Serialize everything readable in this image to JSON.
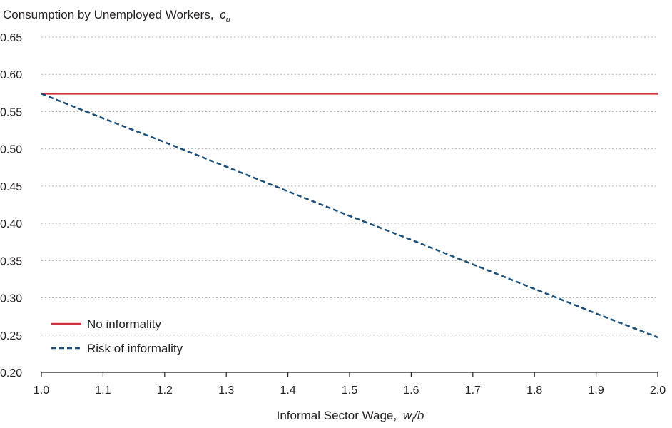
{
  "chart_data": {
    "type": "line",
    "ylabel": "Consumption by Unemployed Workers,",
    "ylabel_symbol": "c",
    "ylabel_symbol_sub": "u",
    "xlabel": "Informal Sector Wage,",
    "xlabel_symbol": "w",
    "xlabel_symbol_sub": "I",
    "xlabel_symbol_suffix": "/b",
    "xlim": [
      1.0,
      2.0
    ],
    "ylim": [
      0.2,
      0.65
    ],
    "x_ticks": [
      "1.0",
      "1.1",
      "1.2",
      "1.3",
      "1.4",
      "1.5",
      "1.6",
      "1.7",
      "1.8",
      "1.9",
      "2.0"
    ],
    "y_ticks": [
      "0.20",
      "0.25",
      "0.30",
      "0.35",
      "0.40",
      "0.45",
      "0.50",
      "0.55",
      "0.60",
      "0.65"
    ],
    "grid": "horizontal-dotted",
    "legend_position": "bottom-left",
    "series": [
      {
        "name": "No informality",
        "color": "#d0323c",
        "style": "solid",
        "x": [
          1.0,
          1.1,
          1.2,
          1.3,
          1.4,
          1.5,
          1.6,
          1.7,
          1.8,
          1.9,
          2.0
        ],
        "values": [
          0.574,
          0.574,
          0.574,
          0.574,
          0.574,
          0.574,
          0.574,
          0.574,
          0.574,
          0.574,
          0.574
        ]
      },
      {
        "name": "Risk of informality",
        "color": "#1b4f7a",
        "style": "dashed",
        "x": [
          1.0,
          1.1,
          1.2,
          1.3,
          1.4,
          1.5,
          1.6,
          1.7,
          1.8,
          1.9,
          2.0
        ],
        "values": [
          0.574,
          0.541,
          0.509,
          0.476,
          0.443,
          0.41,
          0.378,
          0.345,
          0.312,
          0.279,
          0.247
        ]
      }
    ]
  }
}
